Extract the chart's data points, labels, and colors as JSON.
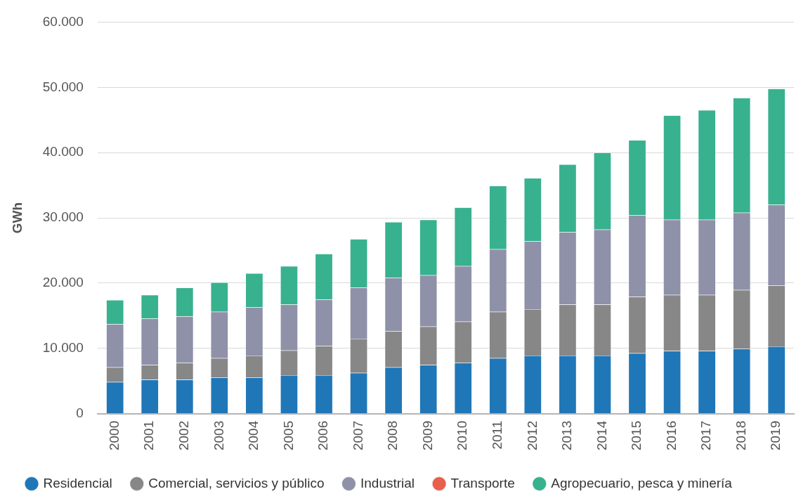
{
  "chart_data": {
    "type": "bar",
    "stacked": true,
    "ylabel": "GWh",
    "categories": [
      "2000",
      "2001",
      "2002",
      "2003",
      "2004",
      "2005",
      "2006",
      "2007",
      "2008",
      "2009",
      "2010",
      "2011",
      "2012",
      "2013",
      "2014",
      "2015",
      "2016",
      "2017",
      "2018",
      "2019"
    ],
    "series": [
      {
        "name": "Residencial",
        "color": "#1f77b8",
        "values": [
          4850,
          5200,
          5200,
          5550,
          5550,
          5900,
          5900,
          6250,
          7100,
          7450,
          7800,
          8500,
          8900,
          8900,
          8900,
          9250,
          9600,
          9600,
          9950,
          10300
        ]
      },
      {
        "name": "Comercial, servicios y público",
        "color": "#878787",
        "values": [
          2250,
          2250,
          2600,
          2950,
          3350,
          3800,
          4500,
          5250,
          5550,
          5900,
          6300,
          7100,
          7100,
          7800,
          7800,
          8650,
          8600,
          8600,
          9000,
          9350
        ]
      },
      {
        "name": "Industrial",
        "color": "#8e91a8",
        "values": [
          6600,
          7100,
          7100,
          7100,
          7400,
          7000,
          7100,
          7800,
          8150,
          7850,
          8500,
          9600,
          10400,
          11100,
          11500,
          12500,
          11500,
          11500,
          11850,
          12350
        ]
      },
      {
        "name": "Transporte",
        "color": "#e8604c",
        "values": [
          0,
          0,
          0,
          0,
          0,
          0,
          0,
          0,
          0,
          0,
          0,
          0,
          0,
          0,
          0,
          0,
          0,
          0,
          0,
          0
        ]
      },
      {
        "name": "Agropecuario, pesca y minería",
        "color": "#38b18f",
        "values": [
          3700,
          3650,
          4400,
          4500,
          5200,
          5900,
          7000,
          7450,
          8550,
          8500,
          9000,
          9700,
          9700,
          10400,
          11800,
          11500,
          16000,
          16800,
          17600,
          17800
        ]
      }
    ],
    "ylim": [
      0,
      60000
    ],
    "yticks": [
      0,
      {
        "value": 10000,
        "label": "10.000"
      },
      {
        "value": 20000,
        "label": "20.000"
      },
      {
        "value": 30000,
        "label": "30.000"
      },
      {
        "value": 40000,
        "label": "40.000"
      },
      {
        "value": 50000,
        "label": "50.000"
      },
      {
        "value": 60000,
        "label": "60.000"
      }
    ],
    "grid": "y",
    "legend": "bottom"
  }
}
